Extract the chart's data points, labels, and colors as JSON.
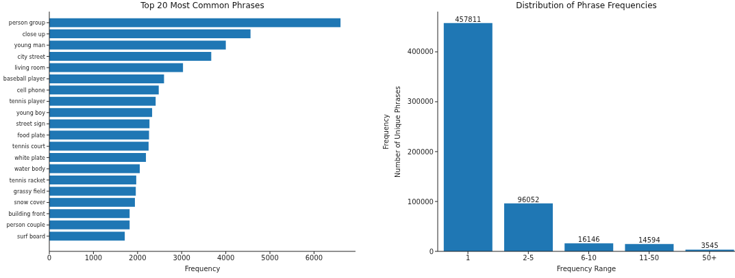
{
  "chart_data": [
    {
      "type": "bar",
      "orientation": "horizontal",
      "title": "Top 20 Most Common Phrases",
      "xlabel": "Frequency",
      "categories": [
        "person group",
        "close up",
        "young man",
        "city street",
        "living room",
        "baseball player",
        "cell phone",
        "tennis player",
        "young boy",
        "street sign",
        "food plate",
        "tennis court",
        "white plate",
        "water body",
        "tennis racket",
        "grassy field",
        "snow cover",
        "building front",
        "person couple",
        "surf board"
      ],
      "values": [
        6600,
        4560,
        4000,
        3670,
        3030,
        2600,
        2480,
        2410,
        2330,
        2270,
        2260,
        2250,
        2190,
        2050,
        1970,
        1960,
        1940,
        1820,
        1820,
        1710
      ],
      "color": "#1f77b4",
      "xlim": [
        0,
        6940
      ],
      "xticks": [
        0,
        1000,
        2000,
        3000,
        4000,
        5000,
        6000
      ],
      "annotations": [
        "Frequency"
      ]
    },
    {
      "type": "bar",
      "title": "Distribution of Phrase Frequencies",
      "xlabel": "Frequency Range",
      "ylabel": "Number of Unique Phrases",
      "categories": [
        "1",
        "2-5",
        "6-10",
        "11-50",
        "50+"
      ],
      "values": [
        457811,
        96052,
        16146,
        14594,
        3545
      ],
      "color": "#1f77b4",
      "ylim": [
        0,
        480700
      ],
      "yticks": [
        0,
        100000,
        200000,
        300000,
        400000
      ],
      "data_labels": true
    }
  ]
}
